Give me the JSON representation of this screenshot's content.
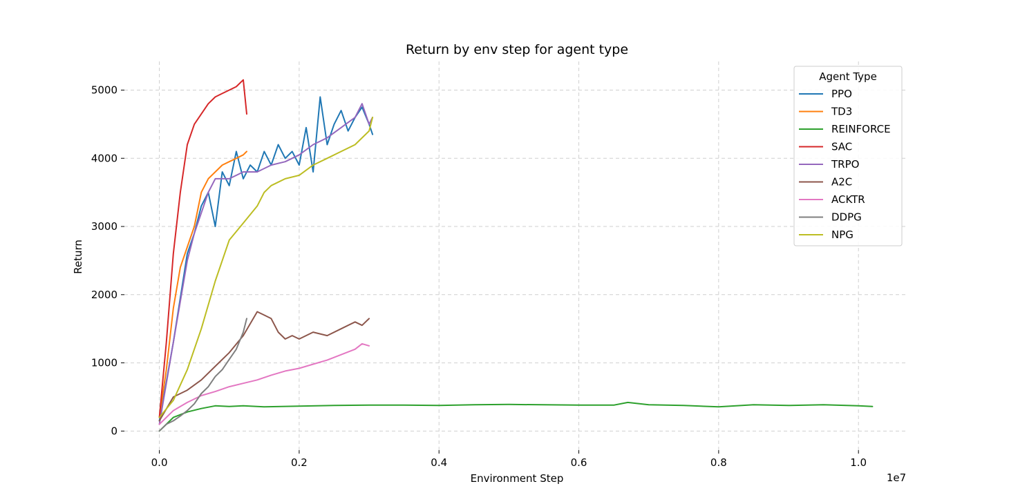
{
  "chart_data": {
    "type": "line",
    "title": "Return by env step for agent type",
    "xlabel": "Environment Step",
    "ylabel": "Return",
    "x_offset_label": "1e7",
    "xlim": [
      -0.05,
      1.07
    ],
    "ylim": [
      -280,
      5420
    ],
    "x_ticks": [
      0.0,
      0.2,
      0.4,
      0.6,
      0.8,
      1.0
    ],
    "x_tick_labels": [
      "0.0",
      "0.2",
      "0.4",
      "0.6",
      "0.8",
      "1.0"
    ],
    "y_ticks": [
      0,
      1000,
      2000,
      3000,
      4000,
      5000
    ],
    "y_tick_labels": [
      "0",
      "1000",
      "2000",
      "3000",
      "4000",
      "5000"
    ],
    "grid": true,
    "legend": {
      "title": "Agent Type",
      "placement": "top-right"
    },
    "series": [
      {
        "name": "PPO",
        "color": "#1f77b4",
        "x": [
          0.0,
          0.02,
          0.04,
          0.05,
          0.06,
          0.07,
          0.08,
          0.09,
          0.1,
          0.11,
          0.12,
          0.13,
          0.14,
          0.15,
          0.16,
          0.17,
          0.18,
          0.19,
          0.2,
          0.21,
          0.22,
          0.23,
          0.24,
          0.25,
          0.26,
          0.27,
          0.28,
          0.29,
          0.3,
          0.305
        ],
        "y": [
          150,
          1300,
          2600,
          2900,
          3300,
          3500,
          3000,
          3800,
          3600,
          4100,
          3700,
          3900,
          3800,
          4100,
          3900,
          4200,
          4000,
          4100,
          3900,
          4450,
          3800,
          4900,
          4200,
          4500,
          4700,
          4400,
          4600,
          4750,
          4500,
          4350
        ]
      },
      {
        "name": "TD3",
        "color": "#ff7f0e",
        "x": [
          0.0,
          0.01,
          0.02,
          0.03,
          0.04,
          0.05,
          0.06,
          0.07,
          0.08,
          0.09,
          0.1,
          0.11,
          0.12,
          0.125
        ],
        "y": [
          200,
          900,
          1800,
          2400,
          2700,
          3000,
          3500,
          3700,
          3800,
          3900,
          3950,
          4000,
          4050,
          4100
        ]
      },
      {
        "name": "REINFORCE",
        "color": "#2ca02c",
        "x": [
          0.0,
          0.02,
          0.04,
          0.06,
          0.08,
          0.1,
          0.12,
          0.15,
          0.2,
          0.25,
          0.3,
          0.35,
          0.4,
          0.45,
          0.5,
          0.55,
          0.6,
          0.65,
          0.67,
          0.7,
          0.75,
          0.8,
          0.85,
          0.9,
          0.95,
          1.0,
          1.02
        ],
        "y": [
          0,
          200,
          280,
          330,
          370,
          360,
          370,
          355,
          365,
          375,
          380,
          380,
          375,
          385,
          390,
          385,
          380,
          380,
          420,
          385,
          375,
          355,
          385,
          375,
          385,
          370,
          360
        ]
      },
      {
        "name": "SAC",
        "color": "#d62728",
        "x": [
          0.0,
          0.01,
          0.02,
          0.03,
          0.04,
          0.05,
          0.06,
          0.07,
          0.08,
          0.09,
          0.1,
          0.11,
          0.115,
          0.12,
          0.125
        ],
        "y": [
          200,
          1300,
          2600,
          3500,
          4200,
          4500,
          4650,
          4800,
          4900,
          4950,
          5000,
          5050,
          5100,
          5150,
          4650
        ]
      },
      {
        "name": "TRPO",
        "color": "#9467bd",
        "x": [
          0.0,
          0.02,
          0.04,
          0.05,
          0.06,
          0.07,
          0.08,
          0.1,
          0.12,
          0.14,
          0.16,
          0.18,
          0.2,
          0.22,
          0.24,
          0.26,
          0.28,
          0.29,
          0.3,
          0.305
        ],
        "y": [
          100,
          1300,
          2500,
          2900,
          3200,
          3500,
          3700,
          3700,
          3800,
          3800,
          3900,
          3950,
          4050,
          4200,
          4300,
          4450,
          4600,
          4800,
          4500,
          4600
        ]
      },
      {
        "name": "A2C",
        "color": "#8c564b",
        "x": [
          0.0,
          0.02,
          0.04,
          0.06,
          0.08,
          0.1,
          0.12,
          0.14,
          0.15,
          0.16,
          0.17,
          0.18,
          0.19,
          0.2,
          0.22,
          0.24,
          0.26,
          0.28,
          0.29,
          0.3
        ],
        "y": [
          150,
          500,
          600,
          750,
          950,
          1150,
          1400,
          1750,
          1700,
          1650,
          1450,
          1350,
          1400,
          1350,
          1450,
          1400,
          1500,
          1600,
          1550,
          1650
        ]
      },
      {
        "name": "ACKTR",
        "color": "#e377c2",
        "x": [
          0.0,
          0.02,
          0.04,
          0.06,
          0.08,
          0.1,
          0.12,
          0.14,
          0.16,
          0.18,
          0.2,
          0.22,
          0.24,
          0.26,
          0.28,
          0.29,
          0.3
        ],
        "y": [
          100,
          300,
          420,
          520,
          580,
          650,
          700,
          750,
          820,
          880,
          920,
          980,
          1040,
          1120,
          1200,
          1280,
          1250
        ]
      },
      {
        "name": "DDPG",
        "color": "#7f7f7f",
        "x": [
          0.0,
          0.01,
          0.02,
          0.03,
          0.04,
          0.05,
          0.06,
          0.07,
          0.08,
          0.09,
          0.1,
          0.11,
          0.12,
          0.125
        ],
        "y": [
          0,
          100,
          150,
          220,
          300,
          400,
          550,
          650,
          800,
          900,
          1050,
          1200,
          1450,
          1650
        ]
      },
      {
        "name": "NPG",
        "color": "#bcbd22",
        "x": [
          0.0,
          0.02,
          0.04,
          0.06,
          0.08,
          0.1,
          0.12,
          0.14,
          0.15,
          0.16,
          0.17,
          0.18,
          0.2,
          0.22,
          0.24,
          0.26,
          0.28,
          0.29,
          0.3,
          0.305
        ],
        "y": [
          200,
          450,
          900,
          1500,
          2200,
          2800,
          3050,
          3300,
          3500,
          3600,
          3650,
          3700,
          3750,
          3900,
          4000,
          4100,
          4200,
          4300,
          4400,
          4600
        ]
      }
    ]
  }
}
